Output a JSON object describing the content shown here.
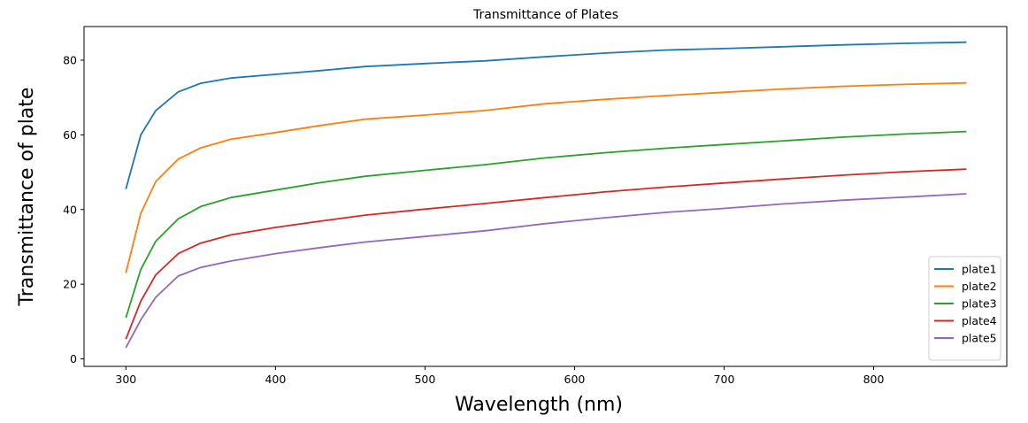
{
  "chart_data": {
    "type": "line",
    "title": "Transmittance of Plates",
    "xlabel": "Wavelength (nm)",
    "ylabel": "Transmittance of plate",
    "xlim": [
      272,
      889
    ],
    "ylim": [
      -2,
      89
    ],
    "xticks": [
      300,
      400,
      500,
      600,
      700,
      800
    ],
    "yticks": [
      0,
      20,
      40,
      60,
      80
    ],
    "grid": false,
    "legend_position": "lower-right",
    "x": [
      300,
      310,
      320,
      335,
      350,
      370,
      400,
      430,
      460,
      500,
      540,
      580,
      620,
      660,
      700,
      740,
      780,
      820,
      862
    ],
    "series": [
      {
        "name": "plate1",
        "color": "#1f77b4",
        "values": [
          45.5,
          60,
          66.5,
          71.5,
          73.8,
          75.2,
          76.2,
          77.2,
          78.3,
          79.1,
          79.8,
          80.9,
          81.9,
          82.7,
          83.1,
          83.6,
          84.1,
          84.5,
          84.8
        ]
      },
      {
        "name": "plate2",
        "color": "#ff7f0e",
        "values": [
          23,
          39,
          47.5,
          53.5,
          56.5,
          58.8,
          60.6,
          62.5,
          64.2,
          65.3,
          66.5,
          68.3,
          69.5,
          70.5,
          71.4,
          72.3,
          73,
          73.5,
          73.9
        ]
      },
      {
        "name": "plate3",
        "color": "#2ca02c",
        "values": [
          11,
          24,
          31.5,
          37.5,
          40.8,
          43.2,
          45.2,
          47.2,
          48.9,
          50.5,
          52,
          53.8,
          55.2,
          56.4,
          57.4,
          58.4,
          59.4,
          60.2,
          60.9
        ]
      },
      {
        "name": "plate4",
        "color": "#d62728",
        "values": [
          5.3,
          15.5,
          22.5,
          28.2,
          31,
          33.2,
          35.2,
          36.9,
          38.5,
          40.1,
          41.6,
          43.2,
          44.7,
          46,
          47.1,
          48.2,
          49.2,
          50.1,
          50.8
        ]
      },
      {
        "name": "plate5",
        "color": "#9467bd",
        "values": [
          3,
          10.5,
          16.5,
          22.2,
          24.5,
          26.2,
          28.2,
          29.8,
          31.3,
          32.8,
          34.3,
          36.2,
          37.8,
          39.2,
          40.3,
          41.5,
          42.5,
          43.3,
          44.2
        ]
      }
    ]
  }
}
